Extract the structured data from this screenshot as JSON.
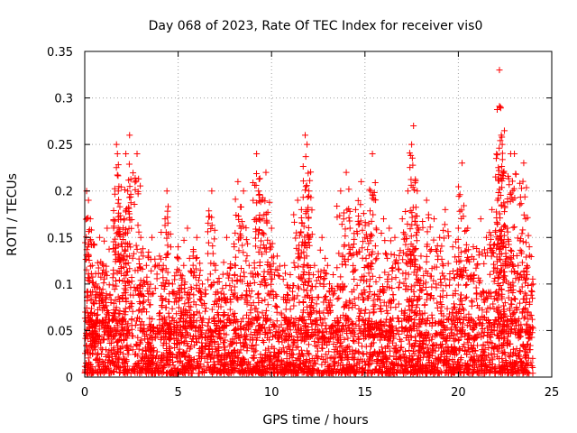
{
  "chart_data": {
    "type": "scatter",
    "title": "Day 068 of 2023, Rate Of TEC Index for receiver vis0",
    "xlabel": "GPS time / hours",
    "ylabel": "ROTI / TECUs",
    "xlim": [
      0,
      25
    ],
    "ylim": [
      0,
      0.35
    ],
    "xticks": [
      "0",
      "5",
      "10",
      "15",
      "20",
      "25"
    ],
    "yticks": [
      "0",
      "0.05",
      "0.1",
      "0.15",
      "0.2",
      "0.25",
      "0.3",
      "0.35"
    ],
    "grid": true,
    "marker": "plus",
    "color": "#ff0000",
    "series": [
      {
        "name": "ROTI",
        "points": [
          [
            0.1,
            0.2
          ],
          [
            0.2,
            0.19
          ],
          [
            0.3,
            0.17
          ],
          [
            0.4,
            0.12
          ],
          [
            0.6,
            0.1
          ],
          [
            0.8,
            0.15
          ],
          [
            1.0,
            0.12
          ],
          [
            1.2,
            0.16
          ],
          [
            1.4,
            0.08
          ],
          [
            1.7,
            0.25
          ],
          [
            1.75,
            0.24
          ],
          [
            1.8,
            0.2
          ],
          [
            2.0,
            0.14
          ],
          [
            2.2,
            0.24
          ],
          [
            2.3,
            0.2
          ],
          [
            2.4,
            0.26
          ],
          [
            2.8,
            0.24
          ],
          [
            3.0,
            0.15
          ],
          [
            3.3,
            0.12
          ],
          [
            3.6,
            0.15
          ],
          [
            4.0,
            0.13
          ],
          [
            4.3,
            0.17
          ],
          [
            4.4,
            0.2
          ],
          [
            4.7,
            0.1
          ],
          [
            5.0,
            0.14
          ],
          [
            5.3,
            0.12
          ],
          [
            5.5,
            0.16
          ],
          [
            5.8,
            0.13
          ],
          [
            6.0,
            0.15
          ],
          [
            6.3,
            0.1
          ],
          [
            6.8,
            0.2
          ],
          [
            7.0,
            0.12
          ],
          [
            7.3,
            0.09
          ],
          [
            7.6,
            0.15
          ],
          [
            8.0,
            0.14
          ],
          [
            8.2,
            0.21
          ],
          [
            8.5,
            0.2
          ],
          [
            8.8,
            0.12
          ],
          [
            9.2,
            0.24
          ],
          [
            9.3,
            0.2
          ],
          [
            9.5,
            0.17
          ],
          [
            9.7,
            0.22
          ],
          [
            10.0,
            0.16
          ],
          [
            10.3,
            0.13
          ],
          [
            10.7,
            0.12
          ],
          [
            11.0,
            0.11
          ],
          [
            11.4,
            0.19
          ],
          [
            11.6,
            0.18
          ],
          [
            11.8,
            0.26
          ],
          [
            11.9,
            0.25
          ],
          [
            12.0,
            0.2
          ],
          [
            12.3,
            0.12
          ],
          [
            12.7,
            0.15
          ],
          [
            13.0,
            0.12
          ],
          [
            13.3,
            0.11
          ],
          [
            13.7,
            0.2
          ],
          [
            14.0,
            0.22
          ],
          [
            14.2,
            0.16
          ],
          [
            14.5,
            0.18
          ],
          [
            14.8,
            0.21
          ],
          [
            15.0,
            0.15
          ],
          [
            15.3,
            0.2
          ],
          [
            15.4,
            0.24
          ],
          [
            15.6,
            0.16
          ],
          [
            16.0,
            0.17
          ],
          [
            16.3,
            0.16
          ],
          [
            16.6,
            0.15
          ],
          [
            17.0,
            0.17
          ],
          [
            17.3,
            0.2
          ],
          [
            17.5,
            0.25
          ],
          [
            17.6,
            0.27
          ],
          [
            17.8,
            0.2
          ],
          [
            18.0,
            0.13
          ],
          [
            18.3,
            0.19
          ],
          [
            18.7,
            0.17
          ],
          [
            19.0,
            0.15
          ],
          [
            19.3,
            0.18
          ],
          [
            19.7,
            0.14
          ],
          [
            20.0,
            0.16
          ],
          [
            20.2,
            0.23
          ],
          [
            20.5,
            0.16
          ],
          [
            20.8,
            0.14
          ],
          [
            21.2,
            0.17
          ],
          [
            21.5,
            0.15
          ],
          [
            21.8,
            0.18
          ],
          [
            22.1,
            0.19
          ],
          [
            22.2,
            0.33
          ],
          [
            22.25,
            0.29
          ],
          [
            22.3,
            0.26
          ],
          [
            22.35,
            0.25
          ],
          [
            22.6,
            0.16
          ],
          [
            22.8,
            0.24
          ],
          [
            23.0,
            0.24
          ],
          [
            23.2,
            0.12
          ],
          [
            23.5,
            0.23
          ],
          [
            23.6,
            0.17
          ],
          [
            23.8,
            0.14
          ],
          [
            24.0,
            0.1
          ]
        ]
      }
    ],
    "baseline": {
      "description": "dense band of ROTI samples across the whole day",
      "typical_range": [
        0.0,
        0.06
      ],
      "x_range": [
        0,
        24
      ]
    }
  }
}
